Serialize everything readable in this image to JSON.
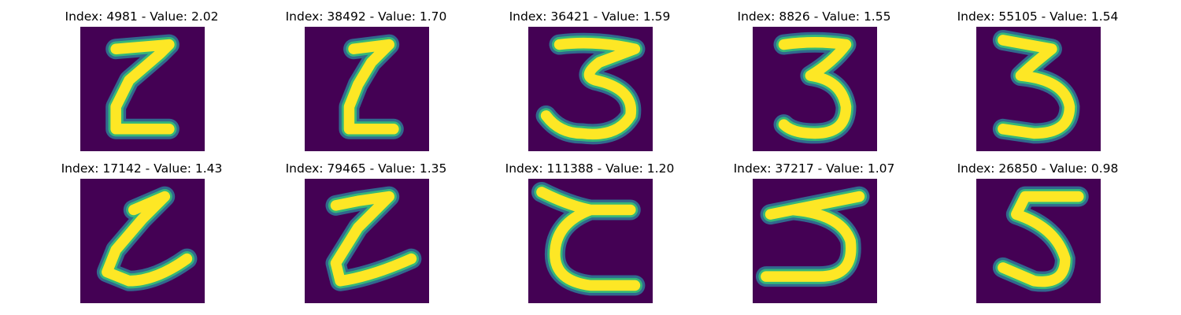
{
  "colors": {
    "background": "#440154",
    "edge_dark": "#31688e",
    "edge_mid": "#35b779",
    "stroke_core": "#fde725"
  },
  "panels": [
    {
      "index": "4981",
      "value": "2.02",
      "title": "Index: 4981 - Value: 2.02",
      "glyph": "Z-like"
    },
    {
      "index": "38492",
      "value": "1.70",
      "title": "Index: 38492 - Value: 1.70",
      "glyph": "L-like"
    },
    {
      "index": "36421",
      "value": "1.59",
      "title": "Index: 36421 - Value: 1.59",
      "glyph": "3"
    },
    {
      "index": "8826",
      "value": "1.55",
      "title": "Index: 8826 - Value: 1.55",
      "glyph": "3"
    },
    {
      "index": "55105",
      "value": "1.54",
      "title": "Index: 55105 - Value: 1.54",
      "glyph": "3"
    },
    {
      "index": "17142",
      "value": "1.43",
      "title": "Index: 17142 - Value: 1.43",
      "glyph": "L-like"
    },
    {
      "index": "79465",
      "value": "1.35",
      "title": "Index: 79465 - Value: 1.35",
      "glyph": "Z-like"
    },
    {
      "index": "111388",
      "value": "1.20",
      "title": "Index: 111388 - Value: 1.20",
      "glyph": "C-like"
    },
    {
      "index": "37217",
      "value": "1.07",
      "title": "Index: 37217 - Value: 1.07",
      "glyph": "5"
    },
    {
      "index": "26850",
      "value": "0.98",
      "title": "Index: 26850 - Value: 0.98",
      "glyph": "5"
    }
  ]
}
